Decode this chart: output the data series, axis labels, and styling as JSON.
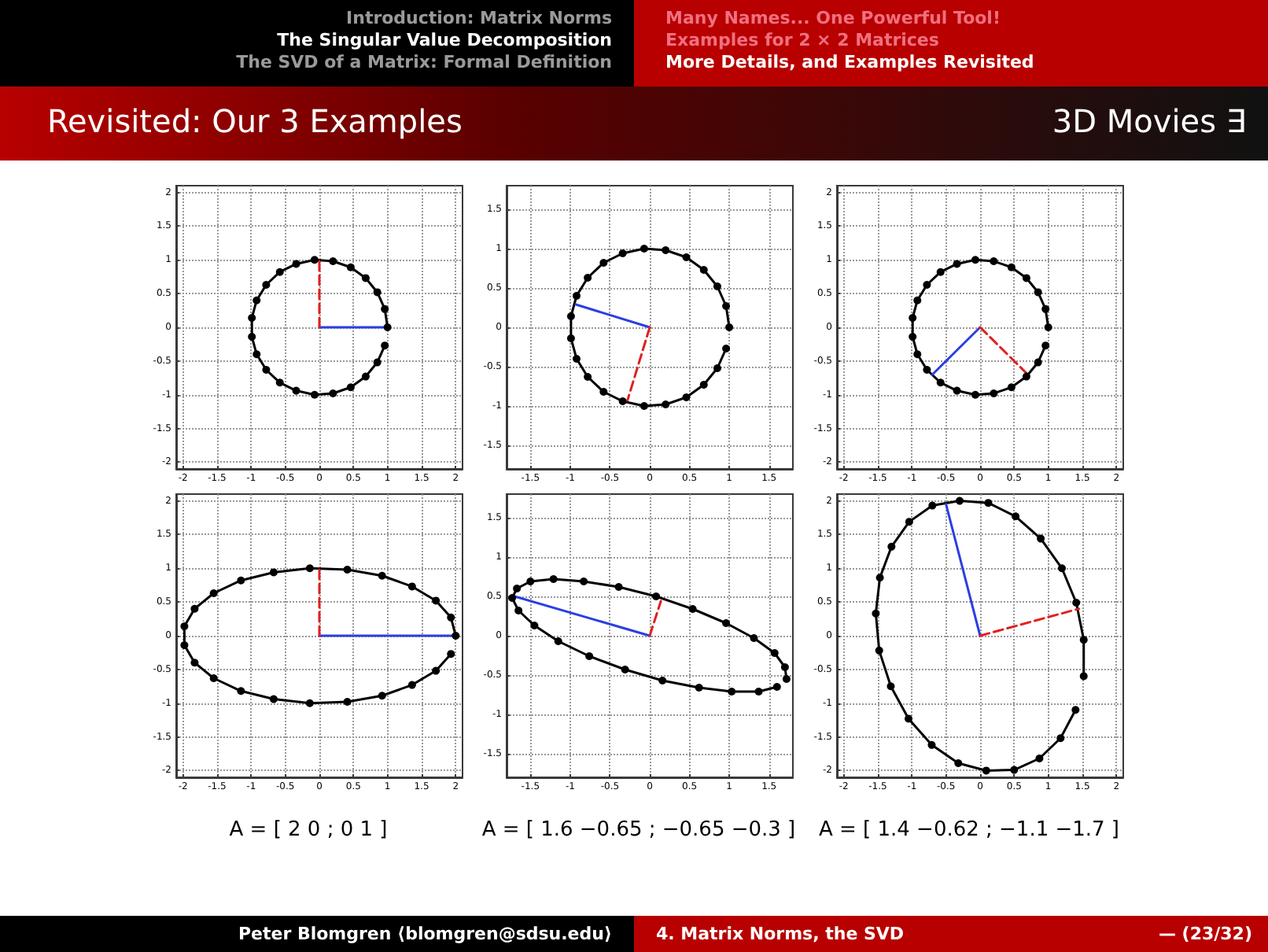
{
  "chart_data": [
    {
      "type": "line",
      "xlim": [
        -2.1,
        2.1
      ],
      "ylim": [
        -2.1,
        2.1
      ],
      "xticks": [
        -2,
        -1.5,
        -1,
        -0.5,
        0,
        0.5,
        1,
        1.5,
        2
      ],
      "yticks": [
        -2,
        -1.5,
        -1,
        -0.5,
        0,
        0.5,
        1,
        1.5,
        2
      ],
      "grid": true,
      "series": [
        {
          "color": "#000000",
          "marker": "circle",
          "x": [
            1,
            0.96,
            0.85,
            0.68,
            0.46,
            0.2,
            -0.07,
            -0.34,
            -0.58,
            -0.78,
            -0.92,
            -0.99,
            -0.99,
            -0.92,
            -0.78,
            -0.58,
            -0.34,
            -0.07,
            0.2,
            0.46,
            0.68,
            0.85,
            0.96
          ],
          "values": [
            0,
            0.27,
            0.52,
            0.73,
            0.89,
            0.98,
            1,
            0.94,
            0.82,
            0.63,
            0.4,
            0.14,
            -0.14,
            -0.4,
            -0.63,
            -0.82,
            -0.94,
            -1,
            -0.98,
            -0.89,
            -0.73,
            -0.52,
            -0.27
          ]
        },
        {
          "color": "#2b3fe0",
          "x": [
            0,
            1
          ],
          "values": [
            0,
            0
          ]
        },
        {
          "color": "#e02020",
          "line_style": "dashed",
          "x": [
            0,
            0
          ],
          "values": [
            0,
            1
          ]
        }
      ]
    },
    {
      "type": "line",
      "xlim": [
        -1.8,
        1.8
      ],
      "ylim": [
        -1.8,
        1.8
      ],
      "xticks": [
        -1.5,
        -1,
        -0.5,
        0,
        0.5,
        1,
        1.5
      ],
      "yticks": [
        -1.5,
        -1,
        -0.5,
        0,
        0.5,
        1,
        1.5
      ],
      "grid": true,
      "series": [
        {
          "color": "#000000",
          "marker": "circle",
          "x": [
            1,
            0.96,
            0.85,
            0.68,
            0.46,
            0.2,
            -0.07,
            -0.34,
            -0.58,
            -0.78,
            -0.92,
            -0.99,
            -0.99,
            -0.92,
            -0.78,
            -0.58,
            -0.34,
            -0.07,
            0.2,
            0.46,
            0.68,
            0.85,
            0.96
          ],
          "values": [
            0,
            0.27,
            0.52,
            0.73,
            0.89,
            0.98,
            1,
            0.94,
            0.82,
            0.63,
            0.4,
            0.14,
            -0.14,
            -0.4,
            -0.63,
            -0.82,
            -0.94,
            -1,
            -0.98,
            -0.89,
            -0.73,
            -0.52,
            -0.27
          ]
        },
        {
          "color": "#2b3fe0",
          "x": [
            0,
            -0.93
          ],
          "values": [
            0,
            0.29
          ]
        },
        {
          "color": "#e02020",
          "line_style": "dashed",
          "x": [
            0,
            -0.28
          ],
          "values": [
            0,
            -0.93
          ]
        }
      ]
    },
    {
      "type": "line",
      "xlim": [
        -2.1,
        2.1
      ],
      "ylim": [
        -2.1,
        2.1
      ],
      "xticks": [
        -2,
        -1.5,
        -1,
        -0.5,
        0,
        0.5,
        1,
        1.5,
        2
      ],
      "yticks": [
        -2,
        -1.5,
        -1,
        -0.5,
        0,
        0.5,
        1,
        1.5,
        2
      ],
      "grid": true,
      "series": [
        {
          "color": "#000000",
          "marker": "circle",
          "x": [
            1,
            0.96,
            0.85,
            0.68,
            0.46,
            0.2,
            -0.07,
            -0.34,
            -0.58,
            -0.78,
            -0.92,
            -0.99,
            -0.99,
            -0.92,
            -0.78,
            -0.58,
            -0.34,
            -0.07,
            0.2,
            0.46,
            0.68,
            0.85,
            0.96
          ],
          "values": [
            0,
            0.27,
            0.52,
            0.73,
            0.89,
            0.98,
            1,
            0.94,
            0.82,
            0.63,
            0.4,
            0.14,
            -0.14,
            -0.4,
            -0.63,
            -0.82,
            -0.94,
            -1,
            -0.98,
            -0.89,
            -0.73,
            -0.52,
            -0.27
          ]
        },
        {
          "color": "#2b3fe0",
          "x": [
            0,
            -0.7
          ],
          "values": [
            0,
            -0.7
          ]
        },
        {
          "color": "#e02020",
          "line_style": "dashed",
          "x": [
            0,
            0.7
          ],
          "values": [
            0,
            -0.7
          ]
        }
      ]
    },
    {
      "type": "line",
      "xlim": [
        -2.1,
        2.1
      ],
      "ylim": [
        -2.1,
        2.1
      ],
      "xticks": [
        -2,
        -1.5,
        -1,
        -0.5,
        0,
        0.5,
        1,
        1.5,
        2
      ],
      "yticks": [
        -2,
        -1.5,
        -1,
        -0.5,
        0,
        0.5,
        1,
        1.5,
        2
      ],
      "grid": true,
      "annotations": [
        "A = [ 2  0 ; 0  1 ]"
      ],
      "series": [
        {
          "color": "#000000",
          "marker": "circle",
          "x": [
            2,
            1.93,
            1.71,
            1.36,
            0.92,
            0.41,
            -0.14,
            -0.67,
            -1.15,
            -1.55,
            -1.83,
            -1.98,
            -1.98,
            -1.83,
            -1.55,
            -1.15,
            -0.67,
            -0.14,
            0.41,
            0.92,
            1.36,
            1.71,
            1.93
          ],
          "values": [
            0,
            0.27,
            0.52,
            0.73,
            0.89,
            0.98,
            1,
            0.94,
            0.82,
            0.63,
            0.4,
            0.14,
            -0.14,
            -0.4,
            -0.63,
            -0.82,
            -0.94,
            -1,
            -0.98,
            -0.89,
            -0.73,
            -0.52,
            -0.27
          ]
        },
        {
          "color": "#2b3fe0",
          "x": [
            0,
            2
          ],
          "values": [
            0,
            0
          ]
        },
        {
          "color": "#e02020",
          "line_style": "dashed",
          "x": [
            0,
            0
          ],
          "values": [
            0,
            1
          ]
        }
      ]
    },
    {
      "type": "line",
      "xlim": [
        -1.8,
        1.8
      ],
      "ylim": [
        -1.8,
        1.8
      ],
      "xticks": [
        -1.5,
        -1,
        -0.5,
        0,
        0.5,
        1,
        1.5
      ],
      "yticks": [
        -1.5,
        -1,
        -0.5,
        0,
        0.5,
        1,
        1.5
      ],
      "grid": true,
      "annotations": [
        "A = [ 1.6  −0.65 ; −0.65  −0.3 ]"
      ],
      "series": [
        {
          "color": "#000000",
          "marker": "circle",
          "x": [
            1.6,
            1.37,
            1.03,
            0.62,
            0.16,
            -0.31,
            -0.76,
            -1.15,
            -1.45,
            -1.65,
            -1.73,
            -1.67,
            -1.5,
            -1.21,
            -0.83,
            -0.39,
            0.08,
            0.54,
            0.96,
            1.31,
            1.57,
            1.7,
            1.72
          ],
          "values": [
            -0.65,
            -0.71,
            -0.71,
            -0.66,
            -0.57,
            -0.43,
            -0.26,
            -0.07,
            0.13,
            0.32,
            0.48,
            0.6,
            0.69,
            0.72,
            0.69,
            0.62,
            0.5,
            0.34,
            0.16,
            -0.03,
            -0.22,
            -0.4,
            -0.55
          ]
        },
        {
          "color": "#2b3fe0",
          "x": [
            0,
            -1.7
          ],
          "values": [
            0,
            0.5
          ]
        },
        {
          "color": "#e02020",
          "line_style": "dashed",
          "x": [
            0,
            0.14
          ],
          "values": [
            0,
            0.44
          ]
        }
      ]
    },
    {
      "type": "line",
      "xlim": [
        -2.1,
        2.1
      ],
      "ylim": [
        -2.1,
        2.1
      ],
      "xticks": [
        -2,
        -1.5,
        -1,
        -0.5,
        0,
        0.5,
        1,
        1.5,
        2
      ],
      "yticks": [
        -2,
        -1.5,
        -1,
        -0.5,
        0,
        0.5,
        1,
        1.5,
        2
      ],
      "grid": true,
      "annotations": [
        "A = [ 1.4  −0.62 ; −1.1  −1.7 ]"
      ],
      "series": [
        {
          "color": "#000000",
          "marker": "circle",
          "x": [
            1.4,
            1.18,
            0.87,
            0.5,
            0.09,
            -0.32,
            -0.71,
            -1.05,
            -1.31,
            -1.48,
            -1.53,
            -1.47,
            -1.3,
            -1.04,
            -0.7,
            -0.3,
            0.12,
            0.52,
            0.89,
            1.2,
            1.41,
            1.52,
            1.52
          ],
          "values": [
            -1.1,
            -1.52,
            -1.82,
            -1.99,
            -2,
            -1.89,
            -1.62,
            -1.23,
            -0.75,
            -0.22,
            0.33,
            0.86,
            1.32,
            1.69,
            1.93,
            2,
            1.97,
            1.77,
            1.44,
            1,
            0.49,
            -0.06,
            -0.6
          ]
        },
        {
          "color": "#2b3fe0",
          "x": [
            0,
            -0.5
          ],
          "values": [
            0,
            1.95
          ]
        },
        {
          "color": "#e02020",
          "line_style": "dashed",
          "x": [
            0,
            1.45
          ],
          "values": [
            0,
            0.4
          ]
        }
      ]
    },
    {
      "type": "other",
      "title": "Revisited: Our 3 Examples",
      "annotations": [
        "Introduction: Matrix Norms",
        "The Singular Value Decomposition",
        "The SVD of a Matrix: Formal Definition",
        "Many Names... One Powerful Tool!",
        "Examples for 2 × 2 Matrices",
        "More Details, and Examples Revisited",
        "3D Movies ∃",
        "Peter Blomgren ⟨blomgren@sdsu.edu⟩",
        "4. Matrix Norms, the SVD",
        "— (23/32)"
      ]
    }
  ]
}
